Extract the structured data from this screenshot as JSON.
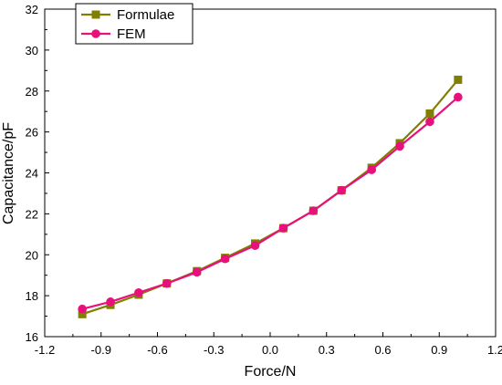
{
  "chart_data": {
    "type": "line",
    "title": "",
    "xlabel": "Force/N",
    "ylabel": "Capacitance/pF",
    "xlim": [
      -1.2,
      1.2
    ],
    "ylim": [
      16,
      32
    ],
    "xticks": [
      -1.2,
      -0.9,
      -0.6,
      -0.3,
      0.0,
      0.3,
      0.6,
      0.9,
      1.2
    ],
    "xtick_labels": [
      "-1.2",
      "-0.9",
      "-0.6",
      "-0.3",
      "0.0",
      "0.3",
      "0.6",
      "0.9",
      "1.2"
    ],
    "yticks": [
      16,
      18,
      20,
      22,
      24,
      26,
      28,
      30,
      32
    ],
    "ytick_labels": [
      "16",
      "18",
      "20",
      "22",
      "24",
      "26",
      "28",
      "30",
      "32"
    ],
    "grid": false,
    "legend_position": "top-left",
    "x": [
      -1.0,
      -0.85,
      -0.7,
      -0.55,
      -0.39,
      -0.24,
      -0.08,
      0.07,
      0.23,
      0.38,
      0.54,
      0.69,
      0.85,
      1.0
    ],
    "series": [
      {
        "name": "Formulae",
        "marker": "square",
        "color": "#808000",
        "values": [
          17.1,
          17.55,
          18.05,
          18.6,
          19.2,
          19.85,
          20.55,
          21.3,
          22.15,
          23.15,
          24.25,
          25.45,
          26.9,
          28.55
        ]
      },
      {
        "name": "FEM",
        "marker": "circle",
        "color": "#e8107a",
        "values": [
          17.35,
          17.7,
          18.15,
          18.6,
          19.15,
          19.8,
          20.45,
          21.3,
          22.15,
          23.15,
          24.15,
          25.3,
          26.5,
          27.7
        ]
      }
    ]
  }
}
